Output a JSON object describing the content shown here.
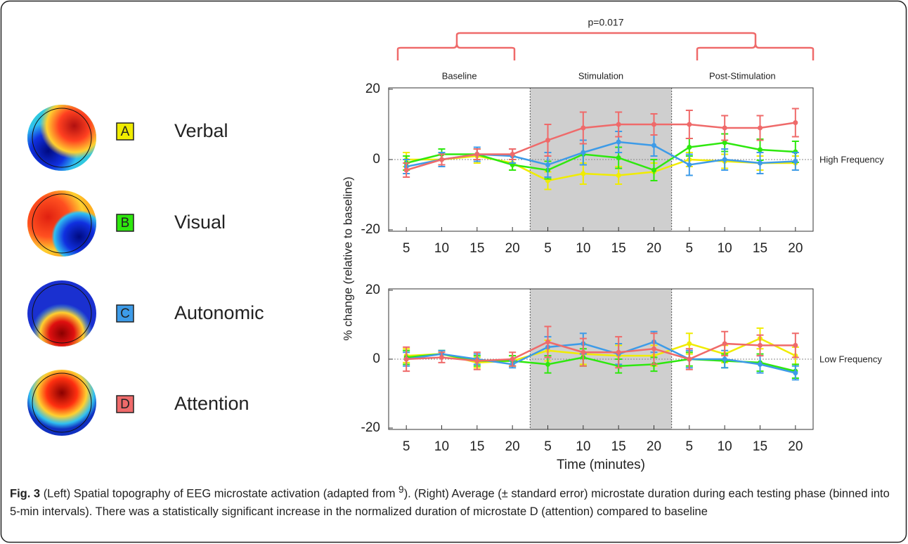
{
  "legend_letters": [
    "A",
    "B",
    "C",
    "D"
  ],
  "caption": {
    "label": "Fig. 3",
    "text_before": "(Left) Spatial topography of EEG microstate activation (adapted from ",
    "ref": "9",
    "text_after": "). (Right) Average (± standard error) microstate duration during each testing phase (binned into 5-min intervals). There was a statistically significant increase in the normalized duration of microstate D (attention) compared to baseline"
  },
  "chart_data": [
    {
      "type": "line",
      "label": "High Frequency",
      "annotation": "p=0.017",
      "ylabel": "% change (relative to baseline)",
      "phases": [
        "Baseline",
        "Stimulation",
        "Post-Stimulation"
      ],
      "shaded_phase_index": 1,
      "categories": [
        "5",
        "10",
        "15",
        "20",
        "5",
        "10",
        "15",
        "20",
        "5",
        "10",
        "15",
        "20"
      ],
      "ylim": [
        -20,
        20
      ],
      "yticks": [
        -20,
        0,
        20
      ],
      "zero_line": true,
      "series": [
        {
          "name": "Verbal",
          "color": "#f0ec00",
          "values": [
            0,
            0,
            1,
            -1,
            -6,
            -4,
            -4.5,
            -3.5,
            0,
            -0.5,
            -1,
            -1
          ],
          "errors": [
            2,
            2,
            2,
            2,
            2.5,
            3,
            2.5,
            2.5,
            2,
            2,
            2,
            2
          ]
        },
        {
          "name": "Visual",
          "color": "#2ee80e",
          "values": [
            -1,
            1.5,
            1.5,
            -1.5,
            -3,
            1.5,
            0.5,
            -3,
            3.5,
            4.8,
            2.8,
            2.2
          ],
          "errors": [
            2,
            1.5,
            1.5,
            1.5,
            2.5,
            3,
            3,
            3,
            2.5,
            2.5,
            3,
            3
          ]
        },
        {
          "name": "Autonomic",
          "color": "#3d9be8",
          "values": [
            -2,
            0,
            1.5,
            1,
            -1.5,
            2,
            5,
            4,
            -1.5,
            0,
            -1,
            -0.5
          ],
          "errors": [
            2,
            2,
            2,
            2,
            3.5,
            3.5,
            3,
            3,
            3,
            3,
            3,
            2.5
          ]
        },
        {
          "name": "Attention",
          "color": "#ef6a6a",
          "values": [
            -3,
            0,
            1.5,
            1.5,
            5.5,
            9,
            10,
            10,
            10,
            9,
            9,
            10.5
          ],
          "errors": [
            2,
            1.5,
            1.5,
            1.5,
            4.5,
            4.5,
            3.5,
            3,
            4,
            3.5,
            3.5,
            4
          ]
        }
      ]
    },
    {
      "type": "line",
      "label": "Low Frequency",
      "xlabel": "Time (minutes)",
      "shaded_phase_index": 1,
      "phase_count": 3,
      "categories": [
        "5",
        "10",
        "15",
        "20",
        "5",
        "10",
        "15",
        "20",
        "5",
        "10",
        "15",
        "20"
      ],
      "ylim": [
        -20,
        20
      ],
      "yticks": [
        -20,
        0,
        20
      ],
      "zero_line": true,
      "series": [
        {
          "name": "Verbal",
          "color": "#f0ec00",
          "values": [
            1,
            1.5,
            -1,
            -0.5,
            2.5,
            1.5,
            1,
            1,
            4.5,
            1.5,
            6,
            1
          ],
          "errors": [
            2,
            1,
            1.5,
            1.5,
            3,
            3,
            3,
            3,
            3,
            2.5,
            3,
            2.5
          ]
        },
        {
          "name": "Visual",
          "color": "#2ee80e",
          "values": [
            0.5,
            1.5,
            -0.5,
            -0.5,
            -1.5,
            0.5,
            -2,
            -1.5,
            0,
            -0.5,
            -1,
            -3.5
          ],
          "errors": [
            2,
            1,
            1.5,
            1.5,
            2.5,
            2.5,
            2,
            2,
            2,
            2,
            2.5,
            2
          ]
        },
        {
          "name": "Autonomic",
          "color": "#3d9be8",
          "values": [
            0,
            1.5,
            0,
            -1.5,
            3.5,
            4.5,
            1.5,
            5,
            0,
            0,
            -1.5,
            -4
          ],
          "errors": [
            2,
            1,
            1.5,
            1,
            3,
            3,
            3,
            3,
            2.5,
            2.5,
            2.5,
            2
          ]
        },
        {
          "name": "Attention",
          "color": "#ef6a6a",
          "values": [
            0,
            0.5,
            -0.5,
            0,
            5,
            2,
            2,
            3,
            0,
            4.5,
            4,
            4
          ],
          "errors": [
            3.5,
            1.5,
            2.5,
            2,
            4.5,
            4,
            4.5,
            4.5,
            3,
            3.5,
            3,
            3.5
          ]
        }
      ]
    }
  ]
}
